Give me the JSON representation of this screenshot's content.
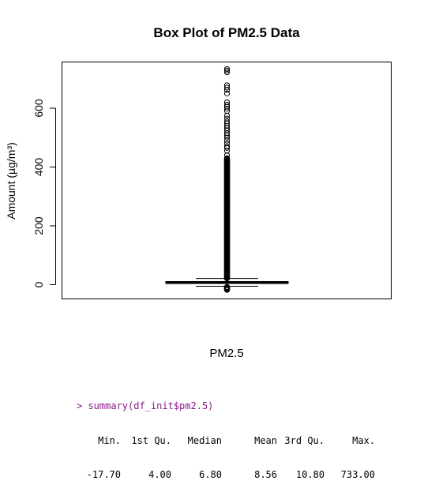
{
  "chart_data": {
    "type": "box",
    "title": "Box Plot of PM2.5 Data",
    "xlabel": "PM2.5",
    "ylabel": "Amount (µg/m³)",
    "ylim": [
      -35,
      750
    ],
    "yticks": [
      0,
      200,
      400,
      600
    ],
    "categories": [
      "PM2.5"
    ],
    "box": {
      "min": -17.7,
      "q1": 4.0,
      "median": 6.8,
      "mean": 8.56,
      "q3": 10.8,
      "max": 733.0,
      "whisker_low": -5.5,
      "whisker_high": 21.0
    },
    "outliers": [
      -17.7,
      -15,
      -12,
      -10,
      22,
      30,
      40,
      60,
      80,
      100,
      120,
      140,
      160,
      180,
      200,
      220,
      240,
      260,
      280,
      300,
      320,
      340,
      360,
      380,
      400,
      410,
      420,
      430,
      440,
      455,
      465,
      470,
      480,
      490,
      500,
      508,
      515,
      525,
      532,
      540,
      548,
      555,
      565,
      575,
      590,
      598,
      605,
      612,
      620,
      650,
      662,
      670,
      678,
      722,
      728,
      733
    ]
  },
  "console": {
    "prompt": "> summary(df_init$pm2.5)",
    "headers": [
      "Min.",
      "1st Qu.",
      "Median",
      "Mean",
      "3rd Qu.",
      "Max."
    ],
    "values": [
      "-17.70",
      "4.00",
      "6.80",
      "8.56",
      "10.80",
      "733.00"
    ]
  }
}
